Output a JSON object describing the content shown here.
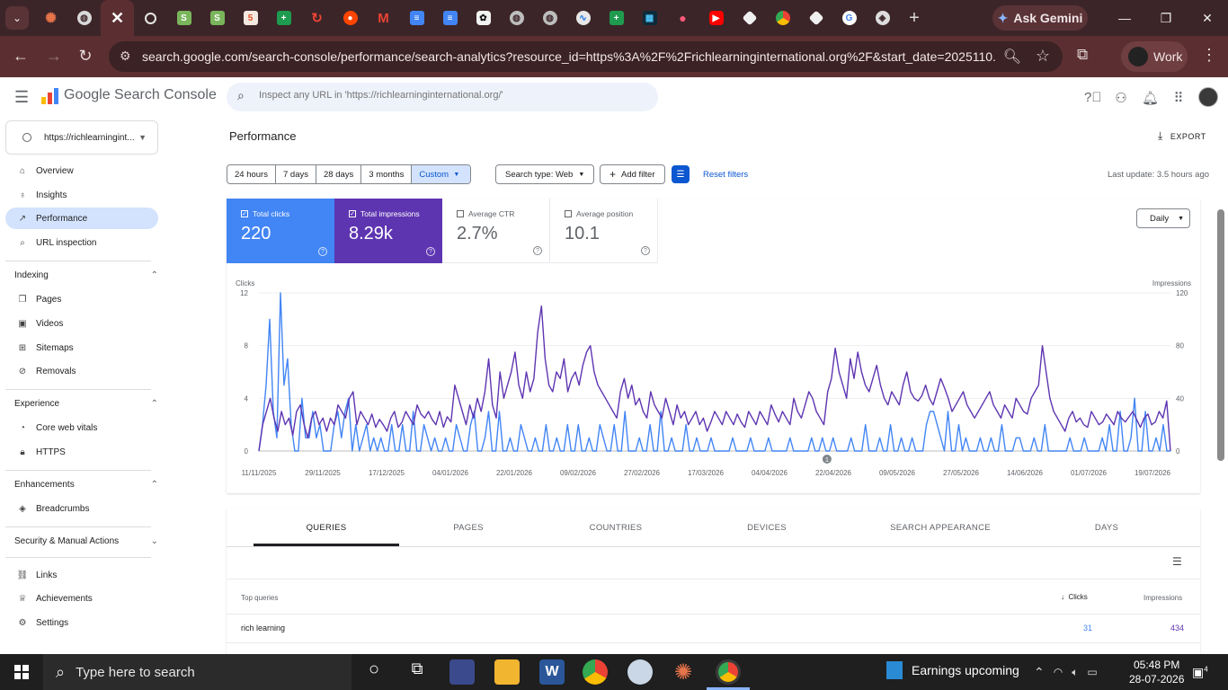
{
  "browser": {
    "active_tab_close": "✕",
    "new_tab": "+",
    "gemini_label": "Ask Gemini",
    "url": "search.google.com/search-console/performance/search-analytics?resource_id=https%3A%2F%2Frichlearninginternational.org%2F&start_date=2025110...",
    "profile_label": "Work",
    "tab_icons": [
      "sunburst-icon",
      "globe-icon",
      "close-icon",
      "circle-icon",
      "shopify-icon",
      "shopify-icon",
      "html5-icon",
      "sheets-plus-icon",
      "swirl-icon",
      "reddit-icon",
      "gmail-icon",
      "docs-icon",
      "docs-icon",
      "openai-icon",
      "globe-icon",
      "globe-icon",
      "activity-icon",
      "sheets-plus-icon",
      "grid-icon",
      "dot-icon",
      "youtube-icon",
      "square-icon",
      "chrome-icon",
      "square-icon",
      "google-icon",
      "shield-icon"
    ]
  },
  "header": {
    "logo_text": "Google Search Console",
    "inspect_placeholder": "Inspect any URL in 'https://richlearninginternational.org/'"
  },
  "sidebar": {
    "property": "https://richlearningint...",
    "items": [
      {
        "label": "Overview",
        "icon": "home-icon"
      },
      {
        "label": "Insights",
        "icon": "bulb-icon"
      },
      {
        "label": "Performance",
        "icon": "trend-icon"
      },
      {
        "label": "URL inspection",
        "icon": "search-icon"
      }
    ],
    "indexing": {
      "title": "Indexing",
      "items": [
        "Pages",
        "Videos",
        "Sitemaps",
        "Removals"
      ]
    },
    "experience": {
      "title": "Experience",
      "items": [
        "Core web vitals",
        "HTTPS"
      ]
    },
    "enhancements": {
      "title": "Enhancements",
      "items": [
        "Breadcrumbs"
      ]
    },
    "security": {
      "title": "Security & Manual Actions"
    },
    "bottom": [
      "Links",
      "Achievements",
      "Settings"
    ]
  },
  "main": {
    "title": "Performance",
    "export_label": "EXPORT",
    "date_ranges": [
      "24 hours",
      "7 days",
      "28 days",
      "3 months",
      "Custom"
    ],
    "search_type": "Search type: Web",
    "add_filter": "Add filter",
    "reset_filters": "Reset filters",
    "last_update": "Last update: 3.5 hours ago",
    "granularity": "Daily"
  },
  "metrics": {
    "clicks": {
      "label": "Total clicks",
      "value": "220"
    },
    "impressions": {
      "label": "Total impressions",
      "value": "8.29k"
    },
    "ctr": {
      "label": "Average CTR",
      "value": "2.7%"
    },
    "position": {
      "label": "Average position",
      "value": "10.1"
    }
  },
  "chart_data": {
    "type": "line",
    "left_axis_label": "Clicks",
    "right_axis_label": "Impressions",
    "left_ticks": [
      "12",
      "8",
      "4",
      "0"
    ],
    "right_ticks": [
      "120",
      "80",
      "40",
      "0"
    ],
    "ylim_left": [
      0,
      12
    ],
    "ylim_right": [
      0,
      120
    ],
    "x_labels": [
      "11/11/2025",
      "29/11/2025",
      "17/12/2025",
      "04/01/2026",
      "22/01/2026",
      "09/02/2026",
      "27/02/2026",
      "17/03/2026",
      "04/04/2026",
      "22/04/2026",
      "09/05/2026",
      "27/05/2026",
      "14/06/2026",
      "01/07/2026",
      "19/07/2026"
    ],
    "annotation": "1",
    "colors": {
      "clicks": "#4285f4",
      "impressions": "#5e35b1"
    },
    "series": [
      {
        "name": "Clicks",
        "axis": "left",
        "values": [
          0,
          2,
          5,
          10,
          3,
          1,
          12,
          5,
          7,
          2,
          0,
          0,
          4,
          1,
          1,
          3,
          1,
          2,
          0,
          0,
          0,
          2,
          3,
          1,
          3,
          4,
          0,
          2,
          0,
          1,
          2,
          0,
          1,
          0,
          1,
          0,
          0,
          2,
          0,
          0,
          2,
          0,
          0,
          3,
          0,
          0,
          2,
          1,
          0,
          1,
          0,
          0,
          1,
          0,
          0,
          2,
          1,
          0,
          0,
          2,
          3,
          0,
          0,
          1,
          3,
          0,
          0,
          3,
          0,
          0,
          1,
          0,
          0,
          2,
          1,
          0,
          0,
          1,
          0,
          0,
          2,
          0,
          0,
          1,
          0,
          0,
          2,
          0,
          0,
          2,
          0,
          0,
          1,
          0,
          0,
          2,
          1,
          0,
          0,
          2,
          0,
          0,
          3,
          0,
          0,
          0,
          1,
          0,
          0,
          2,
          0,
          0,
          3,
          0,
          0,
          1,
          0,
          0,
          0,
          2,
          0,
          0,
          1,
          0,
          0,
          0,
          1,
          0,
          0,
          0,
          0,
          0,
          1,
          0,
          0,
          0,
          0,
          1,
          0,
          0,
          0,
          0,
          1,
          0,
          0,
          0,
          0,
          0,
          1,
          0,
          0,
          0,
          0,
          0,
          1,
          0,
          0,
          1,
          0,
          0,
          1,
          0,
          0,
          0,
          0,
          1,
          0,
          0,
          0,
          2,
          0,
          0,
          0,
          1,
          0,
          0,
          2,
          0,
          0,
          1,
          0,
          0,
          1,
          0,
          0,
          0,
          2,
          3,
          3,
          2,
          1,
          0,
          3,
          0,
          0,
          2,
          0,
          1,
          0,
          0,
          0,
          1,
          0,
          0,
          1,
          0,
          0,
          2,
          0,
          0,
          0,
          1,
          1,
          0,
          0,
          0,
          1,
          0,
          0,
          2,
          0,
          0,
          0,
          0,
          0,
          0,
          1,
          0,
          0,
          0,
          1,
          0,
          0,
          0,
          0,
          1,
          0,
          2,
          0,
          0,
          3,
          0,
          0,
          1,
          4,
          0,
          0,
          3,
          0,
          0,
          1,
          0,
          2,
          0,
          0
        ]
      },
      {
        "name": "Impressions",
        "axis": "right",
        "values": [
          0,
          20,
          30,
          40,
          25,
          15,
          30,
          20,
          25,
          12,
          30,
          35,
          20,
          10,
          25,
          30,
          20,
          25,
          15,
          25,
          20,
          35,
          30,
          25,
          40,
          45,
          20,
          30,
          25,
          20,
          28,
          18,
          24,
          20,
          15,
          25,
          30,
          18,
          22,
          30,
          25,
          20,
          35,
          28,
          25,
          30,
          24,
          20,
          30,
          18,
          26,
          22,
          50,
          40,
          30,
          20,
          35,
          25,
          40,
          30,
          45,
          70,
          35,
          25,
          60,
          40,
          50,
          60,
          75,
          50,
          40,
          60,
          45,
          55,
          90,
          110,
          70,
          50,
          45,
          60,
          55,
          70,
          45,
          55,
          60,
          50,
          65,
          75,
          80,
          60,
          50,
          45,
          40,
          35,
          30,
          25,
          45,
          55,
          40,
          50,
          35,
          40,
          30,
          25,
          45,
          35,
          30,
          25,
          40,
          30,
          20,
          35,
          25,
          30,
          20,
          25,
          30,
          20,
          25,
          15,
          22,
          30,
          25,
          20,
          30,
          25,
          20,
          28,
          22,
          18,
          30,
          25,
          20,
          30,
          25,
          20,
          35,
          28,
          22,
          30,
          25,
          20,
          40,
          30,
          25,
          35,
          45,
          40,
          30,
          25,
          20,
          45,
          55,
          78,
          60,
          50,
          40,
          70,
          55,
          75,
          60,
          50,
          45,
          55,
          65,
          50,
          40,
          35,
          45,
          40,
          35,
          50,
          60,
          45,
          40,
          38,
          42,
          50,
          40,
          35,
          45,
          55,
          48,
          40,
          30,
          35,
          40,
          45,
          35,
          30,
          25,
          30,
          35,
          40,
          45,
          35,
          30,
          25,
          35,
          30,
          25,
          40,
          35,
          30,
          28,
          40,
          45,
          50,
          80,
          60,
          40,
          30,
          25,
          20,
          15,
          25,
          30,
          22,
          25,
          20,
          18,
          30,
          25,
          20,
          22,
          28,
          24,
          20,
          30,
          25,
          22,
          26,
          30,
          24,
          18,
          25,
          28,
          20,
          22,
          30,
          25,
          38,
          0
        ]
      }
    ]
  },
  "dimension_tabs": [
    "QUERIES",
    "PAGES",
    "COUNTRIES",
    "DEVICES",
    "SEARCH APPEARANCE",
    "DAYS"
  ],
  "table": {
    "col_query": "Top queries",
    "col_clicks": "Clicks",
    "col_impressions": "Impressions",
    "rows": [
      {
        "query": "rich learning",
        "clicks": "31",
        "impressions": "434"
      }
    ]
  },
  "taskbar": {
    "search_placeholder": "Type here to search",
    "news": "Earnings upcoming",
    "time": "05:48 PM",
    "date": "28-07-2026",
    "notifications": "4"
  }
}
